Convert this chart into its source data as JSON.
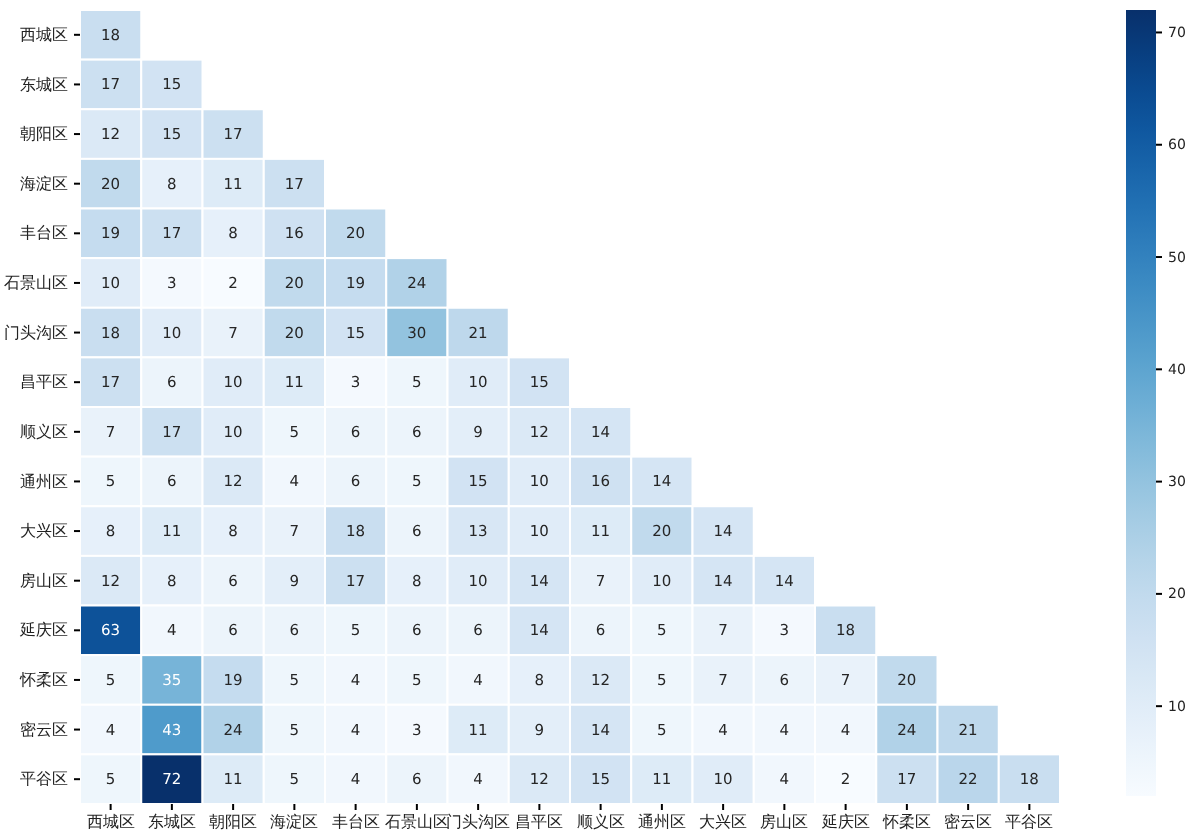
{
  "chart_data": {
    "type": "heatmap",
    "categories": [
      "西城区",
      "东城区",
      "朝阳区",
      "海淀区",
      "丰台区",
      "石景山区",
      "门头沟区",
      "昌平区",
      "顺义区",
      "通州区",
      "大兴区",
      "房山区",
      "延庆区",
      "怀柔区",
      "密云区",
      "平谷区"
    ],
    "y_categories": [
      "西城区",
      "东城区",
      "朝阳区",
      "海淀区",
      "丰台区",
      "石景山区",
      "门头沟区",
      "昌平区",
      "顺义区",
      "通州区",
      "大兴区",
      "房山区",
      "延庆区",
      "怀柔区",
      "密云区",
      "平谷区"
    ],
    "cells": [
      [
        18,
        null,
        null,
        null,
        null,
        null,
        null,
        null,
        null,
        null,
        null,
        null,
        null,
        null,
        null,
        null
      ],
      [
        17,
        15,
        null,
        null,
        null,
        null,
        null,
        null,
        null,
        null,
        null,
        null,
        null,
        null,
        null,
        null
      ],
      [
        12,
        15,
        17,
        null,
        null,
        null,
        null,
        null,
        null,
        null,
        null,
        null,
        null,
        null,
        null,
        null
      ],
      [
        20,
        8,
        11,
        17,
        null,
        null,
        null,
        null,
        null,
        null,
        null,
        null,
        null,
        null,
        null,
        null
      ],
      [
        19,
        17,
        8,
        16,
        20,
        null,
        null,
        null,
        null,
        null,
        null,
        null,
        null,
        null,
        null,
        null
      ],
      [
        10,
        3,
        2,
        20,
        19,
        24,
        null,
        null,
        null,
        null,
        null,
        null,
        null,
        null,
        null,
        null
      ],
      [
        18,
        10,
        7,
        20,
        15,
        30,
        21,
        null,
        null,
        null,
        null,
        null,
        null,
        null,
        null,
        null
      ],
      [
        17,
        6,
        10,
        11,
        3,
        5,
        10,
        15,
        null,
        null,
        null,
        null,
        null,
        null,
        null,
        null
      ],
      [
        7,
        17,
        10,
        5,
        6,
        6,
        9,
        12,
        14,
        null,
        null,
        null,
        null,
        null,
        null,
        null
      ],
      [
        5,
        6,
        12,
        4,
        6,
        5,
        15,
        10,
        16,
        14,
        null,
        null,
        null,
        null,
        null,
        null
      ],
      [
        8,
        11,
        8,
        7,
        18,
        6,
        13,
        10,
        11,
        20,
        14,
        null,
        null,
        null,
        null,
        null
      ],
      [
        12,
        8,
        6,
        9,
        17,
        8,
        10,
        14,
        7,
        10,
        14,
        14,
        null,
        null,
        null,
        null
      ],
      [
        63,
        4,
        6,
        6,
        5,
        6,
        6,
        14,
        6,
        5,
        7,
        3,
        18,
        null,
        null,
        null
      ],
      [
        5,
        35,
        19,
        5,
        4,
        5,
        4,
        8,
        12,
        5,
        7,
        6,
        7,
        20,
        null,
        null
      ],
      [
        4,
        43,
        24,
        5,
        4,
        3,
        11,
        9,
        14,
        5,
        4,
        4,
        4,
        24,
        21,
        null
      ],
      [
        5,
        72,
        11,
        5,
        4,
        6,
        4,
        12,
        15,
        11,
        10,
        4,
        2,
        17,
        22,
        18
      ]
    ],
    "data_labels": true,
    "clim": [
      2,
      72
    ],
    "cticks": [
      10,
      20,
      30,
      40,
      50,
      60,
      70
    ]
  }
}
